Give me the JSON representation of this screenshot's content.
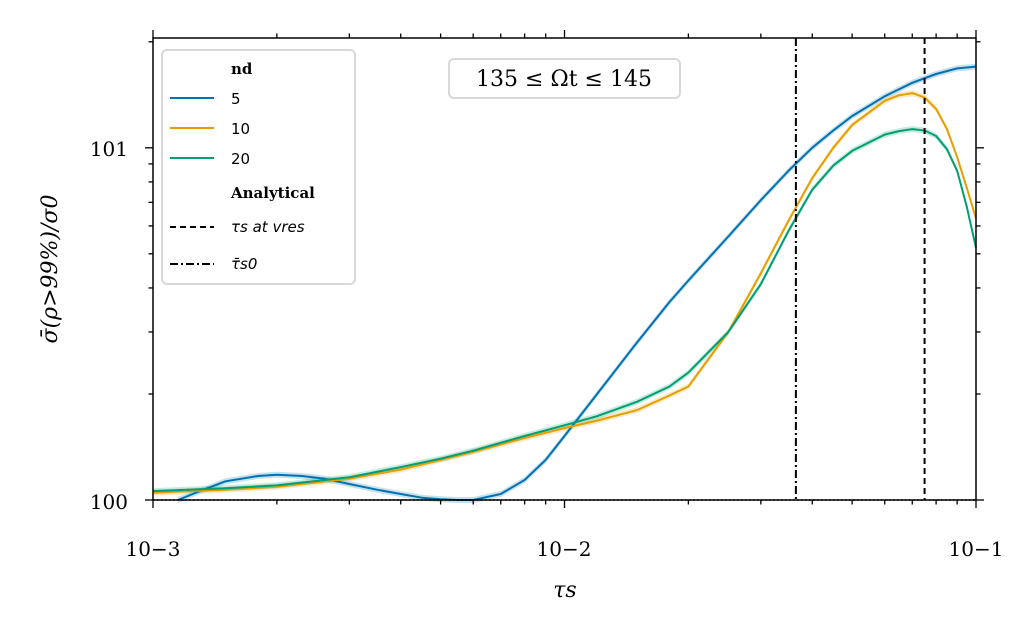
{
  "chart_data": {
    "type": "line",
    "xscale": "log",
    "yscale": "log",
    "xlim": [
      0.001,
      0.1
    ],
    "ylim": [
      1,
      20.5
    ],
    "xlabel": "τs",
    "ylabel": "σ̄(ρ>99%)/σ0",
    "xtick_labels": [
      "10−3",
      "10−2",
      "10−1"
    ],
    "ytick_labels": [
      "100",
      "101"
    ],
    "annotation": "135 ≤ Ωt ≤ 145",
    "legend": {
      "position": "upper left",
      "title": "nd",
      "subtitle": "Analytical"
    },
    "series": [
      {
        "name": "5",
        "color": "#0072B2",
        "x": [
          0.00115,
          0.0013,
          0.0015,
          0.0018,
          0.002,
          0.0023,
          0.0026,
          0.003,
          0.0035,
          0.004,
          0.0045,
          0.005,
          0.0055,
          0.006,
          0.007,
          0.008,
          0.009,
          0.01,
          0.012,
          0.015,
          0.018,
          0.02,
          0.025,
          0.03,
          0.035,
          0.04,
          0.045,
          0.05,
          0.06,
          0.07,
          0.08,
          0.09,
          0.1
        ],
        "y": [
          1.0,
          1.06,
          1.13,
          1.17,
          1.18,
          1.17,
          1.15,
          1.11,
          1.07,
          1.04,
          1.015,
          1.005,
          1.0,
          1.0,
          1.04,
          1.14,
          1.3,
          1.52,
          2.0,
          2.8,
          3.65,
          4.2,
          5.6,
          7.1,
          8.6,
          10.0,
          11.2,
          12.3,
          14.0,
          15.3,
          16.2,
          16.8,
          17.0
        ]
      },
      {
        "name": "10",
        "color": "#E69F00",
        "x": [
          0.001,
          0.0015,
          0.002,
          0.003,
          0.004,
          0.005,
          0.006,
          0.008,
          0.01,
          0.012,
          0.015,
          0.018,
          0.02,
          0.025,
          0.03,
          0.035,
          0.04,
          0.045,
          0.05,
          0.06,
          0.065,
          0.07,
          0.075,
          0.08,
          0.085,
          0.09,
          0.095,
          0.1
        ],
        "y": [
          1.05,
          1.07,
          1.09,
          1.15,
          1.22,
          1.3,
          1.37,
          1.5,
          1.6,
          1.68,
          1.8,
          1.98,
          2.1,
          3.0,
          4.4,
          6.2,
          8.2,
          10.0,
          11.6,
          13.6,
          14.1,
          14.3,
          13.9,
          12.9,
          11.3,
          9.4,
          7.7,
          6.3
        ]
      },
      {
        "name": "20",
        "color": "#009E73",
        "x": [
          0.001,
          0.0015,
          0.002,
          0.003,
          0.004,
          0.005,
          0.006,
          0.008,
          0.01,
          0.012,
          0.015,
          0.018,
          0.02,
          0.025,
          0.03,
          0.035,
          0.04,
          0.045,
          0.05,
          0.06,
          0.065,
          0.07,
          0.075,
          0.08,
          0.085,
          0.09,
          0.095,
          0.1
        ],
        "y": [
          1.06,
          1.08,
          1.1,
          1.16,
          1.24,
          1.31,
          1.38,
          1.52,
          1.63,
          1.73,
          1.9,
          2.1,
          2.3,
          3.0,
          4.1,
          5.8,
          7.6,
          8.9,
          9.8,
          10.9,
          11.15,
          11.3,
          11.2,
          10.8,
          9.9,
          8.6,
          6.8,
          5.2
        ]
      }
    ],
    "reference_lines": [
      {
        "label": "τs at vres",
        "x": 0.075,
        "style": "dashed",
        "color": "#000000"
      },
      {
        "label": "τ̄s0",
        "x": 0.0365,
        "style": "dashdot",
        "color": "#000000"
      },
      {
        "label": "",
        "y": 1.0,
        "style": "dotted",
        "color": "#000000"
      }
    ]
  }
}
